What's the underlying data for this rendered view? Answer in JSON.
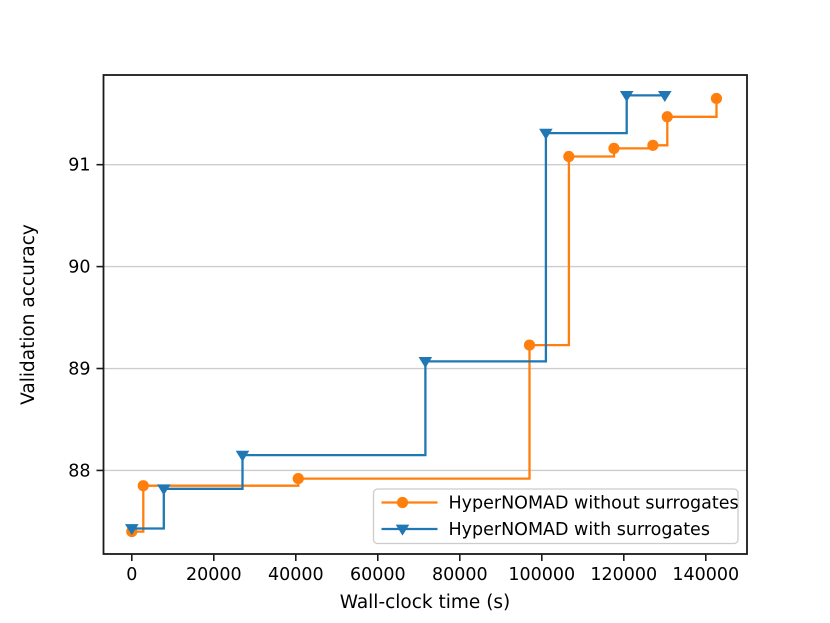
{
  "chart_data": {
    "type": "line",
    "subtype": "step-post",
    "title": "",
    "xlabel": "Wall-clock time (s)",
    "ylabel": "Validation accuracy",
    "xlim": [
      -6900,
      150050
    ],
    "ylim": [
      87.18,
      91.88
    ],
    "x_ticks": [
      0,
      20000,
      40000,
      60000,
      80000,
      100000,
      120000,
      140000
    ],
    "y_ticks": [
      88,
      89,
      90,
      91
    ],
    "grid": "horizontal-only",
    "grid_color": "#cdcdcd",
    "spine_color": "#1a1a1a",
    "background_color": "#ffffff",
    "legend_position": "lower-right-inside",
    "legend_border_color": "#cccccc",
    "series": [
      {
        "name": "HyperNOMAD without surrogates",
        "color": "#ff7f0e",
        "marker": "circle",
        "points": [
          [
            0,
            87.4
          ],
          [
            2800,
            87.85
          ],
          [
            40600,
            87.92
          ],
          [
            97000,
            89.23
          ],
          [
            106600,
            91.08
          ],
          [
            117600,
            91.16
          ],
          [
            127100,
            91.19
          ],
          [
            130600,
            91.47
          ],
          [
            142600,
            91.65
          ]
        ]
      },
      {
        "name": "HyperNOMAD with surrogates",
        "color": "#1f77b4",
        "marker": "triangle-down",
        "points": [
          [
            0,
            87.43
          ],
          [
            7800,
            87.82
          ],
          [
            27000,
            88.15
          ],
          [
            71600,
            89.07
          ],
          [
            101000,
            91.31
          ],
          [
            120700,
            91.68
          ],
          [
            130000,
            91.68
          ]
        ]
      }
    ]
  }
}
